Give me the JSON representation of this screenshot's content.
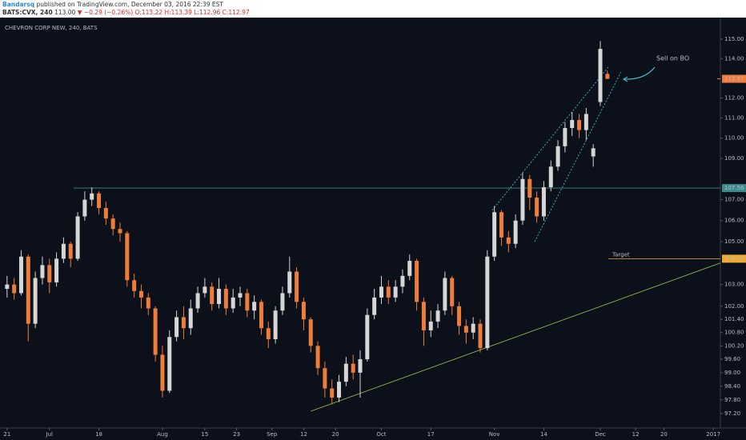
{
  "header": {
    "author": "Bandarsq",
    "published": "published on TradingView.com, December 03, 2016 22:39 EST",
    "symbol": "BATS:CVX, 240",
    "price": "113.00",
    "change": "▼ −0.29 (−0.26%)",
    "ohlc": "O:113.22 H:113.39 L:112.96 C:112.97"
  },
  "chart_data": {
    "type": "candlestick",
    "title": "CHEVRON CORP NEW, 240, BATS",
    "log_scale": true,
    "up_color": "#d6d6d6",
    "down_color": "#ef7d3a",
    "ylim": [
      96.57,
      116.12
    ],
    "xlim": [
      -1,
      101
    ],
    "yticks": [
      {
        "value": 115,
        "label": "115.00"
      },
      {
        "value": 114,
        "label": "114.00"
      },
      {
        "value": 112,
        "label": "112.00"
      },
      {
        "value": 111,
        "label": "111.00"
      },
      {
        "value": 110,
        "label": "110.00"
      },
      {
        "value": 109,
        "label": "109.00"
      },
      {
        "value": 107,
        "label": "107.00"
      },
      {
        "value": 106,
        "label": "106.00"
      },
      {
        "value": 105,
        "label": "105.00"
      },
      {
        "value": 103,
        "label": "103.00"
      },
      {
        "value": 102,
        "label": "102.00"
      },
      {
        "value": 101.4,
        "label": "101.40"
      },
      {
        "value": 100.8,
        "label": "100.80"
      },
      {
        "value": 100.2,
        "label": "100.20"
      },
      {
        "value": 99.6,
        "label": "99.60"
      },
      {
        "value": 99,
        "label": "99.00"
      },
      {
        "value": 98.4,
        "label": "98.40"
      },
      {
        "value": 97.8,
        "label": "97.80"
      },
      {
        "value": 97.2,
        "label": "97.20"
      }
    ],
    "xticks": [
      {
        "value": 0,
        "label": "21"
      },
      {
        "value": 6,
        "label": "Jul"
      },
      {
        "value": 13,
        "label": "18"
      },
      {
        "value": 22,
        "label": "Aug"
      },
      {
        "value": 28,
        "label": "15"
      },
      {
        "value": 32.5,
        "label": "23"
      },
      {
        "value": 37.5,
        "label": "Sep"
      },
      {
        "value": 42,
        "label": "12"
      },
      {
        "value": 46.5,
        "label": "20"
      },
      {
        "value": 53,
        "label": "Oct"
      },
      {
        "value": 60,
        "label": "17"
      },
      {
        "value": 69,
        "label": "Nov"
      },
      {
        "value": 76,
        "label": "14"
      },
      {
        "value": 84,
        "label": "Dec"
      },
      {
        "value": 89,
        "label": "12"
      },
      {
        "value": 93,
        "label": "20"
      },
      {
        "value": 100,
        "label": "2017"
      }
    ],
    "open": [
      102.8,
      103.0,
      102.6,
      104.3,
      101.2,
      103.3,
      103.9,
      103.1,
      104.2,
      104.9,
      104.2,
      106.2,
      107.0,
      107.3,
      106.6,
      106.1,
      105.6,
      105.4,
      103.2,
      102.7,
      102.4,
      101.9,
      99.8,
      98.2,
      100.6,
      101.5,
      101.0,
      101.9,
      102.6,
      102.9,
      102.1,
      102.8,
      101.9,
      102.4,
      102.6,
      101.8,
      102.2,
      101.0,
      100.5,
      101.8,
      102.6,
      103.6,
      102.2,
      101.4,
      100.2,
      99.2,
      98.3,
      97.9,
      98.6,
      99.4,
      99.0,
      99.6,
      101.6,
      102.4,
      102.9,
      102.4,
      102.9,
      103.4,
      104.1,
      102.2,
      100.9,
      101.3,
      101.8,
      103.3,
      102.0,
      101.1,
      100.8,
      101.2,
      100.1,
      104.3,
      106.4,
      105.2,
      104.9,
      106.0,
      108.0,
      107.1,
      106.2,
      107.6,
      108.6,
      109.6,
      110.5,
      110.9,
      110.4,
      109.1,
      111.8,
      113.22
    ],
    "high": [
      103.4,
      103.3,
      104.6,
      104.4,
      103.6,
      104.3,
      104.2,
      104.5,
      105.2,
      105.0,
      106.4,
      107.4,
      107.6,
      107.4,
      106.9,
      106.3,
      105.9,
      105.5,
      103.5,
      103.0,
      102.6,
      102.0,
      100.2,
      100.9,
      101.8,
      102.0,
      102.3,
      102.9,
      103.3,
      103.1,
      103.3,
      103.0,
      102.8,
      102.9,
      102.8,
      102.5,
      102.3,
      101.3,
      102.0,
      102.9,
      104.3,
      103.8,
      102.4,
      101.5,
      100.4,
      99.5,
      98.7,
      98.9,
      99.7,
      99.8,
      100.0,
      101.9,
      102.8,
      103.4,
      103.2,
      103.2,
      103.7,
      104.4,
      104.2,
      102.4,
      101.8,
      102.1,
      103.6,
      103.4,
      102.2,
      101.4,
      101.5,
      101.4,
      104.6,
      106.7,
      106.5,
      105.5,
      106.3,
      108.3,
      108.2,
      107.4,
      107.9,
      108.9,
      109.9,
      110.8,
      111.3,
      111.2,
      111.5,
      109.7,
      114.9,
      113.39
    ],
    "low": [
      102.4,
      102.3,
      102.5,
      100.4,
      101.0,
      103.0,
      102.6,
      102.9,
      104.0,
      103.8,
      104.1,
      106.0,
      106.7,
      106.3,
      105.8,
      105.3,
      105.0,
      102.9,
      102.4,
      101.9,
      101.6,
      99.5,
      97.9,
      98.1,
      100.4,
      100.5,
      100.7,
      101.7,
      102.4,
      101.8,
      101.9,
      101.6,
      101.7,
      102.0,
      101.5,
      101.4,
      100.7,
      100.1,
      100.3,
      101.6,
      102.4,
      101.9,
      100.9,
      99.9,
      98.9,
      97.9,
      97.6,
      97.7,
      98.4,
      98.7,
      97.9,
      99.5,
      101.4,
      102.1,
      102.1,
      102.2,
      102.6,
      103.2,
      101.8,
      100.2,
      100.6,
      101.0,
      101.6,
      101.6,
      100.7,
      100.3,
      100.5,
      99.9,
      100.0,
      104.1,
      104.8,
      104.5,
      104.7,
      105.8,
      106.5,
      105.9,
      106.0,
      107.4,
      108.4,
      109.3,
      110.1,
      110.0,
      109.9,
      108.6,
      111.6,
      112.96
    ],
    "close": [
      103.0,
      102.6,
      104.3,
      101.2,
      103.3,
      103.9,
      103.1,
      104.2,
      104.9,
      104.2,
      106.2,
      107.0,
      107.3,
      106.6,
      106.1,
      105.6,
      105.4,
      103.2,
      102.7,
      102.4,
      101.9,
      99.8,
      98.2,
      100.6,
      101.5,
      101.0,
      101.9,
      102.6,
      102.9,
      102.1,
      102.8,
      101.9,
      102.4,
      102.6,
      101.8,
      102.2,
      101.0,
      100.5,
      101.8,
      102.6,
      103.6,
      102.2,
      101.4,
      100.2,
      99.2,
      98.3,
      97.9,
      98.6,
      99.4,
      99.0,
      99.6,
      101.6,
      102.4,
      102.9,
      102.4,
      102.9,
      103.4,
      104.1,
      102.2,
      100.9,
      101.3,
      101.8,
      103.3,
      102.0,
      101.1,
      100.8,
      101.2,
      100.1,
      104.3,
      106.4,
      105.2,
      104.9,
      106.0,
      108.0,
      107.1,
      106.2,
      107.6,
      108.6,
      109.6,
      110.5,
      110.9,
      110.4,
      111.2,
      109.5,
      114.5,
      112.97
    ],
    "levels": [
      {
        "value": 107.56,
        "label": "107.56",
        "color": "#3d8a8a"
      },
      {
        "value": 104.2,
        "label": "104.20",
        "color": "#f0a92a",
        "text": "Target"
      }
    ],
    "last": {
      "value": 112.97,
      "label": "112.97",
      "color": "#ef7d3a"
    },
    "trendlines": [
      {
        "x": [
          43,
          101
        ],
        "y": [
          97.3,
          104.0
        ],
        "color": "#9bc34a",
        "dashed": false
      },
      {
        "x": [
          68.7,
          85.2
        ],
        "y": [
          106.5,
          113.6
        ],
        "color": "#4dd0e1",
        "dashed": true
      },
      {
        "x": [
          74.7,
          86.9
        ],
        "y": [
          105.0,
          113.3
        ],
        "color": "#4dd0e1",
        "dashed": true
      }
    ],
    "annotation": {
      "text": "Sell on BO",
      "color": "#4dd0e1"
    }
  }
}
